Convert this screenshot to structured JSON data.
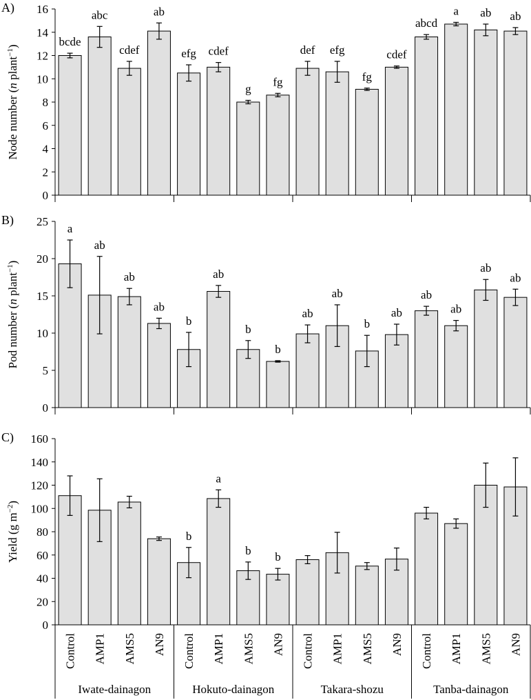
{
  "chart_data": {
    "categories": [
      "Control",
      "AMP1",
      "AMS5",
      "AN9",
      "Control",
      "AMP1",
      "AMS5",
      "AN9",
      "Control",
      "AMP1",
      "AMS5",
      "AN9",
      "Control",
      "AMP1",
      "AMS5",
      "AN9"
    ],
    "groups": [
      "Iwate-dainagon",
      "Hokuto-dainagon",
      "Takara-shozu",
      "Tanba-dainagon"
    ],
    "bar_color": "#e0e0e0",
    "panels": [
      {
        "type": "bar",
        "panel_label": "A)",
        "ylabel_pre": "Node number (",
        "ylabel_italic": "n",
        "ylabel_post": " plant",
        "ylabel_sup": "−1",
        "ylabel_end": ")",
        "ylim": [
          0,
          16
        ],
        "yticks": [
          0,
          2,
          4,
          6,
          8,
          10,
          12,
          14,
          16
        ],
        "values": [
          12.0,
          13.6,
          10.9,
          14.1,
          10.5,
          11.0,
          8.0,
          8.6,
          10.9,
          10.6,
          9.1,
          11.0,
          13.6,
          14.7,
          14.2,
          14.1
        ],
        "errors": [
          0.2,
          0.9,
          0.6,
          0.7,
          0.7,
          0.4,
          0.15,
          0.15,
          0.6,
          0.9,
          0.1,
          0.1,
          0.2,
          0.15,
          0.5,
          0.3
        ],
        "letters": [
          "bcde",
          "abc",
          "cdef",
          "ab",
          "efg",
          "cdef",
          "g",
          "fg",
          "def",
          "efg",
          "fg",
          "cdef",
          "abcd",
          "a",
          "ab",
          "ab"
        ]
      },
      {
        "type": "bar",
        "panel_label": "B)",
        "ylabel_pre": "Pod number (",
        "ylabel_italic": "n",
        "ylabel_post": " plant",
        "ylabel_sup": "−1",
        "ylabel_end": ")",
        "ylim": [
          0,
          25
        ],
        "yticks": [
          0,
          5,
          10,
          15,
          20,
          25
        ],
        "values": [
          19.3,
          15.1,
          14.9,
          11.3,
          7.8,
          15.6,
          7.8,
          6.2,
          9.9,
          11.0,
          7.6,
          9.8,
          13.0,
          11.0,
          15.8,
          14.8
        ],
        "errors": [
          3.2,
          5.2,
          1.1,
          0.7,
          2.3,
          0.8,
          1.2,
          0.1,
          1.2,
          2.8,
          2.1,
          1.4,
          0.6,
          0.7,
          1.4,
          1.1
        ],
        "letters": [
          "a",
          "ab",
          "ab",
          "ab",
          "b",
          "ab",
          "b",
          "b",
          "ab",
          "ab",
          "b",
          "ab",
          "ab",
          "ab",
          "ab",
          "ab"
        ]
      },
      {
        "type": "bar",
        "panel_label": "C)",
        "ylabel_pre": "Yield  (g m",
        "ylabel_italic": "",
        "ylabel_post": "",
        "ylabel_sup": "−2",
        "ylabel_end": ")",
        "ylim": [
          0,
          160
        ],
        "yticks": [
          0,
          20,
          40,
          60,
          80,
          100,
          120,
          140,
          160
        ],
        "values": [
          111,
          98.5,
          105.5,
          74,
          53.5,
          108.5,
          46.5,
          43.5,
          56,
          62,
          50.5,
          56.5,
          96,
          87,
          120,
          118.5
        ],
        "errors": [
          17,
          27,
          5,
          1.5,
          13,
          7.5,
          7.5,
          5,
          3.5,
          17.5,
          3,
          9.5,
          5,
          4,
          19,
          25
        ],
        "letters": [
          "",
          "",
          "",
          "",
          "b",
          "a",
          "b",
          "b",
          "",
          "",
          "",
          "",
          "",
          "",
          "",
          ""
        ]
      }
    ]
  }
}
